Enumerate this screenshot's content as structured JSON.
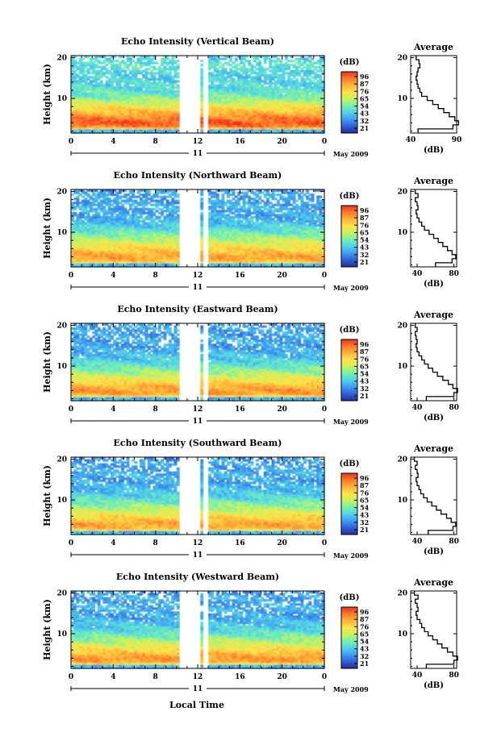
{
  "figure": {
    "bottom_xlabel": "Local Time",
    "date_label": "May 2009",
    "day_label": "11",
    "colorbar_unit": "(dB)",
    "colormap": [
      "#2a2a9e",
      "#2f5fd6",
      "#3f9bef",
      "#52d2ea",
      "#74f0b0",
      "#c9f25c",
      "#ffe24a",
      "#ffb43a",
      "#ff7a2a",
      "#f0301e"
    ]
  },
  "chart_data": [
    {
      "type": "heatmap",
      "title": "Echo Intensity (Vertical Beam)",
      "ylabel": "Height (km)",
      "x_ticks": [
        "0",
        "4",
        "8",
        "12",
        "16",
        "20",
        "0"
      ],
      "y_ticks": [
        "20",
        "10"
      ],
      "xlim": [
        0,
        24
      ],
      "ylim": [
        1.5,
        20.5
      ],
      "data_gaps_hours": [
        [
          10.2,
          12.2
        ],
        [
          12.6,
          13.0
        ]
      ],
      "colorbar": {
        "ticks": [
          "96",
          "87",
          "76",
          "65",
          "54",
          "43",
          "32",
          "21"
        ],
        "range": [
          21,
          96
        ]
      },
      "average_profile": {
        "title": "Average",
        "xlabel": "(dB)",
        "x_ticks": [
          "40",
          "90"
        ],
        "y_ticks": [
          "20",
          "10"
        ],
        "xlim": [
          40,
          90
        ],
        "height_km": [
          2,
          3,
          4,
          5,
          6,
          7,
          8,
          9,
          10,
          11,
          12,
          13,
          14,
          15,
          16,
          17,
          18,
          19,
          20
        ],
        "intensity_db": [
          48,
          86,
          92,
          88,
          82,
          76,
          70,
          64,
          58,
          52,
          50,
          48,
          47,
          46,
          47,
          48,
          50,
          49,
          46
        ]
      }
    },
    {
      "type": "heatmap",
      "title": "Echo Intensity (Northward Beam)",
      "ylabel": "Height (km)",
      "x_ticks": [
        "0",
        "4",
        "8",
        "12",
        "16",
        "20",
        "0"
      ],
      "y_ticks": [
        "20",
        "10"
      ],
      "xlim": [
        0,
        24
      ],
      "ylim": [
        1.5,
        20.5
      ],
      "data_gaps_hours": [
        [
          10.2,
          12.2
        ],
        [
          12.6,
          13.0
        ]
      ],
      "colorbar": {
        "ticks": [
          "96",
          "87",
          "76",
          "65",
          "54",
          "43",
          "32",
          "21"
        ],
        "range": [
          21,
          96
        ]
      },
      "average_profile": {
        "title": "Average",
        "xlabel": "(dB)",
        "x_ticks": [
          "40",
          "80"
        ],
        "y_ticks": [
          "20",
          "10"
        ],
        "xlim": [
          33,
          83
        ],
        "height_km": [
          2,
          3,
          4,
          5,
          6,
          7,
          8,
          9,
          10,
          11,
          12,
          13,
          14,
          15,
          16,
          17,
          18,
          19,
          20
        ],
        "intensity_db": [
          60,
          78,
          82,
          78,
          73,
          68,
          63,
          58,
          53,
          48,
          45,
          42,
          40,
          39,
          41,
          40,
          38,
          41,
          38
        ]
      }
    },
    {
      "type": "heatmap",
      "title": "Echo Intensity (Eastward Beam)",
      "ylabel": "Height (km)",
      "x_ticks": [
        "0",
        "4",
        "8",
        "12",
        "16",
        "20",
        "0"
      ],
      "y_ticks": [
        "20",
        "10"
      ],
      "xlim": [
        0,
        24
      ],
      "ylim": [
        1.5,
        20.5
      ],
      "data_gaps_hours": [
        [
          10.2,
          12.2
        ],
        [
          12.6,
          13.0
        ]
      ],
      "colorbar": {
        "ticks": [
          "96",
          "87",
          "76",
          "65",
          "54",
          "43",
          "32",
          "21"
        ],
        "range": [
          21,
          96
        ]
      },
      "average_profile": {
        "title": "Average",
        "xlabel": "(dB)",
        "x_ticks": [
          "40",
          "80"
        ],
        "y_ticks": [
          "20",
          "10"
        ],
        "xlim": [
          33,
          83
        ],
        "height_km": [
          2,
          3,
          4,
          5,
          6,
          7,
          8,
          9,
          10,
          11,
          12,
          13,
          14,
          15,
          16,
          17,
          18,
          19,
          20
        ],
        "intensity_db": [
          50,
          80,
          84,
          79,
          74,
          68,
          62,
          57,
          52,
          48,
          45,
          42,
          40,
          39,
          40,
          39,
          38,
          40,
          38
        ]
      }
    },
    {
      "type": "heatmap",
      "title": "Echo Intensity (Southward Beam)",
      "ylabel": "Height (km)",
      "x_ticks": [
        "0",
        "4",
        "8",
        "12",
        "16",
        "20",
        "0"
      ],
      "y_ticks": [
        "20",
        "10"
      ],
      "xlim": [
        0,
        24
      ],
      "ylim": [
        1.5,
        20.5
      ],
      "data_gaps_hours": [
        [
          10.2,
          12.2
        ],
        [
          12.6,
          13.0
        ]
      ],
      "colorbar": {
        "ticks": [
          "96",
          "87",
          "76",
          "65",
          "54",
          "43",
          "32",
          "21"
        ],
        "range": [
          21,
          96
        ]
      },
      "average_profile": {
        "title": "Average",
        "xlabel": "(dB)",
        "x_ticks": [
          "40",
          "80"
        ],
        "y_ticks": [
          "20",
          "10"
        ],
        "xlim": [
          33,
          83
        ],
        "height_km": [
          2,
          3,
          4,
          5,
          6,
          7,
          8,
          9,
          10,
          11,
          12,
          13,
          14,
          15,
          16,
          17,
          18,
          19,
          20
        ],
        "intensity_db": [
          52,
          79,
          82,
          77,
          72,
          66,
          61,
          56,
          51,
          47,
          44,
          42,
          40,
          39,
          41,
          40,
          38,
          40,
          37
        ]
      }
    },
    {
      "type": "heatmap",
      "title": "Echo Intensity (Westward Beam)",
      "ylabel": "Height (km)",
      "x_ticks": [
        "0",
        "4",
        "8",
        "12",
        "16",
        "20",
        "0"
      ],
      "y_ticks": [
        "20",
        "10"
      ],
      "xlim": [
        0,
        24
      ],
      "ylim": [
        1.5,
        20.5
      ],
      "data_gaps_hours": [
        [
          10.2,
          12.2
        ],
        [
          12.6,
          13.0
        ]
      ],
      "colorbar": {
        "ticks": [
          "96",
          "87",
          "76",
          "65",
          "54",
          "43",
          "32",
          "21"
        ],
        "range": [
          21,
          96
        ]
      },
      "average_profile": {
        "title": "Average",
        "xlabel": "(dB)",
        "x_ticks": [
          "40",
          "80"
        ],
        "y_ticks": [
          "20",
          "10"
        ],
        "xlim": [
          33,
          83
        ],
        "height_km": [
          2,
          3,
          4,
          5,
          6,
          7,
          8,
          9,
          10,
          11,
          12,
          13,
          14,
          15,
          16,
          17,
          18,
          19,
          20
        ],
        "intensity_db": [
          50,
          80,
          84,
          79,
          73,
          67,
          62,
          57,
          52,
          48,
          45,
          43,
          40,
          39,
          41,
          40,
          38,
          41,
          37
        ]
      }
    }
  ]
}
